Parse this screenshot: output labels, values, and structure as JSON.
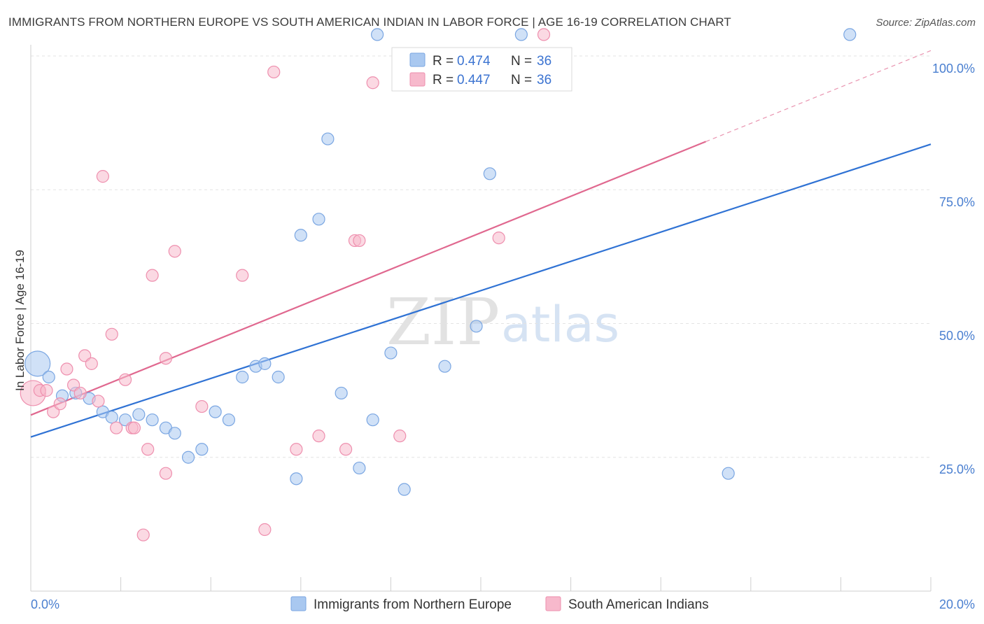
{
  "header": {
    "title": "IMMIGRANTS FROM NORTHERN EUROPE VS SOUTH AMERICAN INDIAN IN LABOR FORCE | AGE 16-19 CORRELATION CHART",
    "source": "Source: ZipAtlas.com"
  },
  "watermark": {
    "part1": "ZIP",
    "part2": "atlas"
  },
  "legend": {
    "rows": [
      {
        "r_label": "R =",
        "r_value": "0.474",
        "n_label": "N =",
        "n_value": "36",
        "color": "#a9c8f0"
      },
      {
        "r_label": "R =",
        "r_value": "0.447",
        "n_label": "N =",
        "n_value": "36",
        "color": "#f7b9cc"
      }
    ]
  },
  "bottom_legend": [
    {
      "label": "Immigrants from Northern Europe",
      "color": "#a9c8f0"
    },
    {
      "label": "South American Indians",
      "color": "#f7b9cc"
    }
  ],
  "chart_data": {
    "type": "scatter",
    "title": "IMMIGRANTS FROM NORTHERN EUROPE VS SOUTH AMERICAN INDIAN IN LABOR FORCE | AGE 16-19 CORRELATION CHART",
    "xlabel": "",
    "ylabel": "In Labor Force | Age 16-19",
    "xlim": [
      0,
      20
    ],
    "ylim": [
      0,
      102
    ],
    "x_tick_labels": [
      "0.0%",
      "20.0%"
    ],
    "y_ticks": [
      25,
      50,
      75,
      100
    ],
    "y_tick_labels": [
      "25.0%",
      "50.0%",
      "75.0%",
      "100.0%"
    ],
    "grid": true,
    "legend_position": "top-center",
    "series": [
      {
        "name": "Immigrants from Northern Europe",
        "color": "#a9c8f0",
        "stroke": "#7aa6e2",
        "trend_color": "#2f72d4",
        "trend": {
          "x0": 0,
          "y0": 28.8,
          "x1": 20,
          "y1": 83.5
        },
        "points": [
          {
            "x": 0.15,
            "y": 42.5,
            "big": true
          },
          {
            "x": 0.4,
            "y": 40.0
          },
          {
            "x": 0.7,
            "y": 36.5
          },
          {
            "x": 1.0,
            "y": 37.0
          },
          {
            "x": 1.3,
            "y": 36.0
          },
          {
            "x": 1.6,
            "y": 33.5
          },
          {
            "x": 1.8,
            "y": 32.5
          },
          {
            "x": 2.1,
            "y": 32.0
          },
          {
            "x": 2.4,
            "y": 33.0
          },
          {
            "x": 2.7,
            "y": 32.0
          },
          {
            "x": 3.0,
            "y": 30.5
          },
          {
            "x": 3.2,
            "y": 29.5
          },
          {
            "x": 3.5,
            "y": 25.0
          },
          {
            "x": 3.8,
            "y": 26.5
          },
          {
            "x": 4.1,
            "y": 33.5
          },
          {
            "x": 4.4,
            "y": 32.0
          },
          {
            "x": 4.7,
            "y": 40.0
          },
          {
            "x": 5.0,
            "y": 42.0
          },
          {
            "x": 5.2,
            "y": 42.5
          },
          {
            "x": 5.5,
            "y": 40.0
          },
          {
            "x": 5.9,
            "y": 21.0
          },
          {
            "x": 6.0,
            "y": 66.5
          },
          {
            "x": 6.4,
            "y": 69.5
          },
          {
            "x": 6.6,
            "y": 84.5
          },
          {
            "x": 6.9,
            "y": 37.0
          },
          {
            "x": 7.3,
            "y": 23.0
          },
          {
            "x": 7.6,
            "y": 32.0
          },
          {
            "x": 7.7,
            "y": 104.0
          },
          {
            "x": 8.0,
            "y": 44.5
          },
          {
            "x": 8.3,
            "y": 19.0
          },
          {
            "x": 9.2,
            "y": 42.0
          },
          {
            "x": 9.9,
            "y": 49.5
          },
          {
            "x": 10.2,
            "y": 78.0
          },
          {
            "x": 10.9,
            "y": 104.0
          },
          {
            "x": 15.5,
            "y": 22.0
          },
          {
            "x": 18.2,
            "y": 104.0
          }
        ]
      },
      {
        "name": "South American Indians",
        "color": "#f7b9cc",
        "stroke": "#ee8fae",
        "trend_color": "#e0688f",
        "trend": {
          "x0": 0,
          "y0": 32.9,
          "x1": 15.0,
          "y1": 84.0
        },
        "trend_dashed": {
          "x0": 15.0,
          "y0": 84.0,
          "x1": 20,
          "y1": 101.0
        },
        "points": [
          {
            "x": 0.05,
            "y": 37.0,
            "big": true
          },
          {
            "x": 0.2,
            "y": 37.5
          },
          {
            "x": 0.35,
            "y": 37.5
          },
          {
            "x": 0.5,
            "y": 33.5
          },
          {
            "x": 0.65,
            "y": 35.0
          },
          {
            "x": 0.8,
            "y": 41.5
          },
          {
            "x": 0.95,
            "y": 38.5
          },
          {
            "x": 1.1,
            "y": 37.0
          },
          {
            "x": 1.2,
            "y": 44.0
          },
          {
            "x": 1.35,
            "y": 42.5
          },
          {
            "x": 1.5,
            "y": 35.5
          },
          {
            "x": 1.6,
            "y": 77.5
          },
          {
            "x": 1.8,
            "y": 48.0
          },
          {
            "x": 1.9,
            "y": 30.5
          },
          {
            "x": 2.1,
            "y": 39.5
          },
          {
            "x": 2.25,
            "y": 30.5
          },
          {
            "x": 2.3,
            "y": 30.5
          },
          {
            "x": 2.5,
            "y": 10.5
          },
          {
            "x": 2.6,
            "y": 26.5
          },
          {
            "x": 2.7,
            "y": 59.0
          },
          {
            "x": 3.0,
            "y": 43.5
          },
          {
            "x": 3.0,
            "y": 22.0
          },
          {
            "x": 3.2,
            "y": 63.5
          },
          {
            "x": 3.8,
            "y": 34.5
          },
          {
            "x": 4.7,
            "y": 59.0
          },
          {
            "x": 5.2,
            "y": 11.5
          },
          {
            "x": 5.4,
            "y": 97.0
          },
          {
            "x": 5.9,
            "y": 26.5
          },
          {
            "x": 6.4,
            "y": 29.0
          },
          {
            "x": 7.0,
            "y": 26.5
          },
          {
            "x": 7.2,
            "y": 65.5
          },
          {
            "x": 7.3,
            "y": 65.5
          },
          {
            "x": 7.6,
            "y": 95.0
          },
          {
            "x": 8.2,
            "y": 29.0
          },
          {
            "x": 10.4,
            "y": 66.0
          },
          {
            "x": 11.4,
            "y": 104.0
          }
        ]
      }
    ]
  }
}
